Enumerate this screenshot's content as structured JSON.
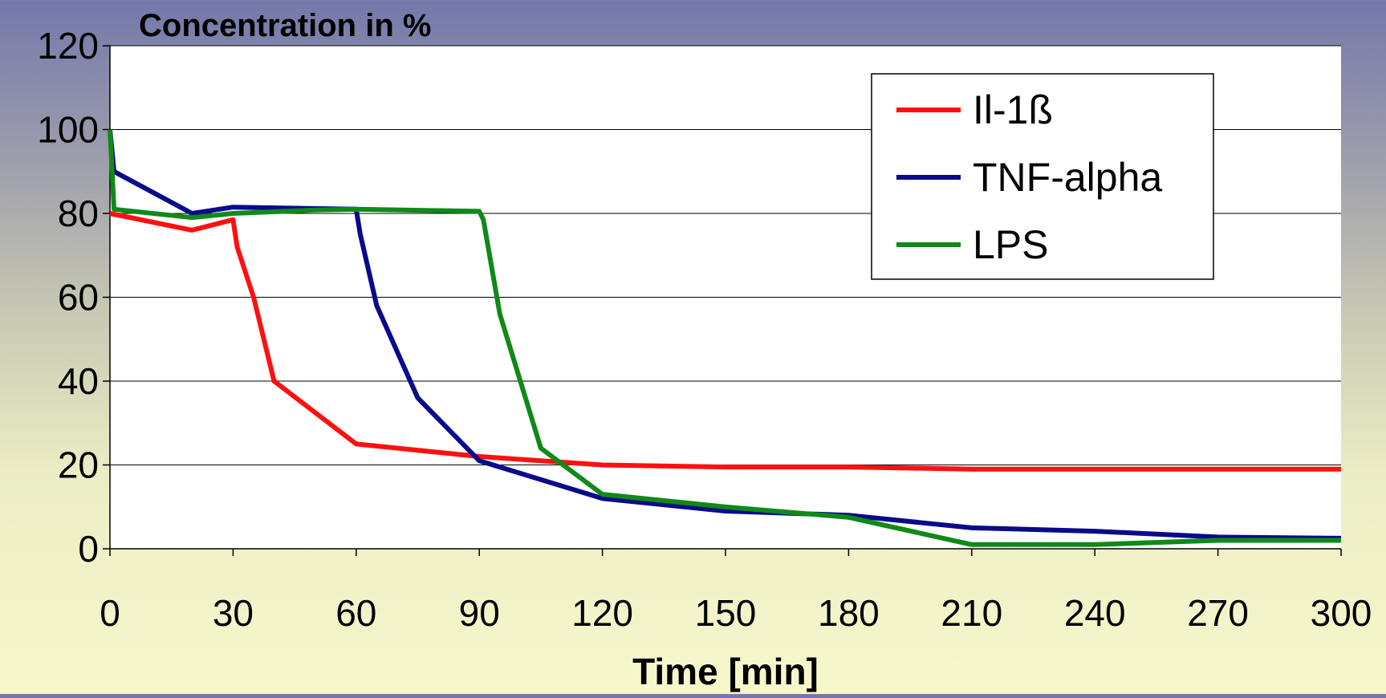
{
  "chart_data": {
    "type": "line",
    "title": "Concentration in %",
    "xlabel": "Time [min]",
    "ylabel": "",
    "xlim": [
      0,
      300
    ],
    "ylim": [
      0,
      120
    ],
    "x_ticks": [
      0,
      30,
      60,
      90,
      120,
      150,
      180,
      210,
      240,
      270,
      300
    ],
    "y_ticks": [
      0,
      20,
      40,
      60,
      80,
      100,
      120
    ],
    "grid": "horizontal",
    "legend_position": "top-right",
    "series": [
      {
        "name": "Il-1ß",
        "color": "#ff1010",
        "points": [
          [
            0,
            80
          ],
          [
            20,
            76
          ],
          [
            30,
            78.5
          ],
          [
            31,
            72
          ],
          [
            35,
            60
          ],
          [
            40,
            40
          ],
          [
            60,
            25
          ],
          [
            90,
            22
          ],
          [
            120,
            20
          ],
          [
            150,
            19.5
          ],
          [
            180,
            19.5
          ],
          [
            210,
            19
          ],
          [
            240,
            19
          ],
          [
            270,
            19
          ],
          [
            300,
            19
          ]
        ]
      },
      {
        "name": "TNF-alpha",
        "color": "#0a0a8a",
        "points": [
          [
            0,
            100
          ],
          [
            1,
            90
          ],
          [
            20,
            80
          ],
          [
            30,
            81.5
          ],
          [
            60,
            81
          ],
          [
            61,
            75
          ],
          [
            65,
            58
          ],
          [
            75,
            36
          ],
          [
            90,
            21
          ],
          [
            120,
            12
          ],
          [
            150,
            9
          ],
          [
            180,
            8
          ],
          [
            210,
            5
          ],
          [
            240,
            4.2
          ],
          [
            270,
            2.8
          ],
          [
            300,
            2.5
          ]
        ]
      },
      {
        "name": "LPS",
        "color": "#0f8a18",
        "points": [
          [
            0,
            100
          ],
          [
            1,
            81
          ],
          [
            20,
            79
          ],
          [
            30,
            80
          ],
          [
            50,
            80.8
          ],
          [
            60,
            81
          ],
          [
            90,
            80.5
          ],
          [
            91,
            78.5
          ],
          [
            95,
            56
          ],
          [
            105,
            24
          ],
          [
            120,
            13
          ],
          [
            150,
            10
          ],
          [
            180,
            7.5
          ],
          [
            210,
            1
          ],
          [
            240,
            1
          ],
          [
            270,
            2
          ],
          [
            300,
            2
          ]
        ]
      }
    ]
  }
}
